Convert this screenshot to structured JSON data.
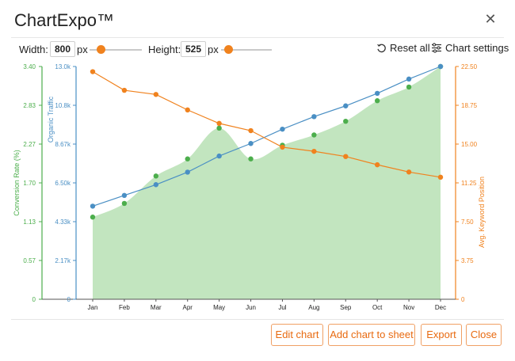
{
  "window": {
    "title": "ChartExpo™"
  },
  "toolbar": {
    "width_label": "Width:",
    "width_value": "800",
    "width_unit": "px",
    "height_label": "Height:",
    "height_value": "525",
    "height_unit": "px",
    "reset_label": "Reset all",
    "settings_label": "Chart settings"
  },
  "footer": {
    "edit_label": "Edit chart",
    "add_label": "Add chart to sheet",
    "export_label": "Export",
    "close_label": "Close"
  },
  "colors": {
    "conversion": "#4cae4c",
    "traffic": "#4a8fc4",
    "position": "#f0821e",
    "area": "#c2e5bf"
  },
  "chart_data": {
    "type": "line",
    "categories": [
      "Jan",
      "Feb",
      "Mar",
      "Apr",
      "May",
      "Jun",
      "Jul",
      "Aug",
      "Sep",
      "Oct",
      "Nov",
      "Dec"
    ],
    "series": [
      {
        "name": "Conversion Rate (%)",
        "axis": "left-outer",
        "style": "area",
        "values": [
          1.2,
          1.4,
          1.8,
          2.05,
          2.5,
          2.05,
          2.25,
          2.4,
          2.6,
          2.9,
          3.1,
          3.4
        ]
      },
      {
        "name": "Organic Traffic",
        "axis": "left-inner",
        "style": "line",
        "values": [
          5200,
          5800,
          6400,
          7100,
          8000,
          8700,
          9500,
          10200,
          10800,
          11500,
          12300,
          13000
        ]
      },
      {
        "name": "Avg. Keyword Position",
        "axis": "right",
        "style": "line",
        "values": [
          22.0,
          20.2,
          19.8,
          18.3,
          17.0,
          16.3,
          14.7,
          14.3,
          13.8,
          13.0,
          12.3,
          11.8
        ]
      }
    ],
    "axes": {
      "left_outer": {
        "label": "Conversion Rate (%)",
        "ticks": [
          "0",
          "0.57",
          "1.13",
          "1.70",
          "2.27",
          "2.83",
          "3.40"
        ],
        "range": [
          0,
          3.4
        ]
      },
      "left_inner": {
        "label": "Organic Traffic",
        "ticks": [
          "0",
          "2.17k",
          "4.33k",
          "6.50k",
          "8.67k",
          "10.8k",
          "13.0k"
        ],
        "range": [
          0,
          13000
        ]
      },
      "right": {
        "label": "Avg. Keyword Position",
        "ticks": [
          "0",
          "3.75",
          "7.50",
          "11.25",
          "15.00",
          "18.75",
          "22.50"
        ],
        "range": [
          0,
          22.5
        ]
      }
    },
    "grid": false,
    "legend": "none"
  }
}
